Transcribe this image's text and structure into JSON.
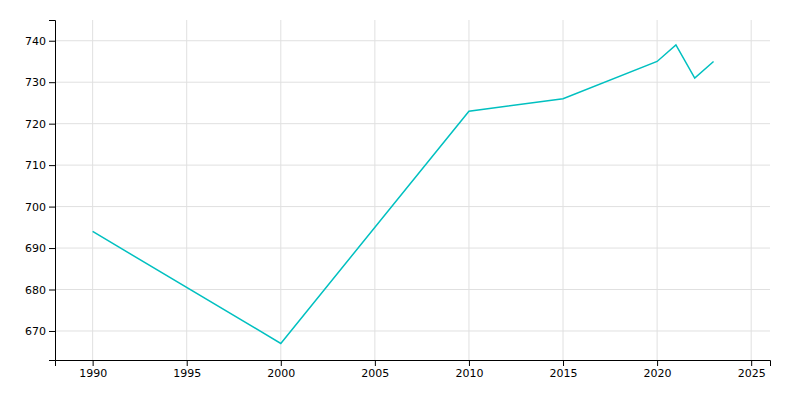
{
  "chart_data": {
    "type": "line",
    "x": [
      1990,
      2000,
      2010,
      2015,
      2020,
      2021,
      2022,
      2023
    ],
    "values": [
      694,
      667,
      723,
      726,
      735,
      739,
      731,
      735
    ],
    "color": "#00C0C0",
    "xlim": [
      1988,
      2026
    ],
    "ylim": [
      663,
      745
    ],
    "xticks": [
      1990,
      1995,
      2000,
      2005,
      2010,
      2015,
      2020,
      2025
    ],
    "yticks": [
      670,
      680,
      690,
      700,
      710,
      720,
      730,
      740
    ],
    "grid": true
  }
}
